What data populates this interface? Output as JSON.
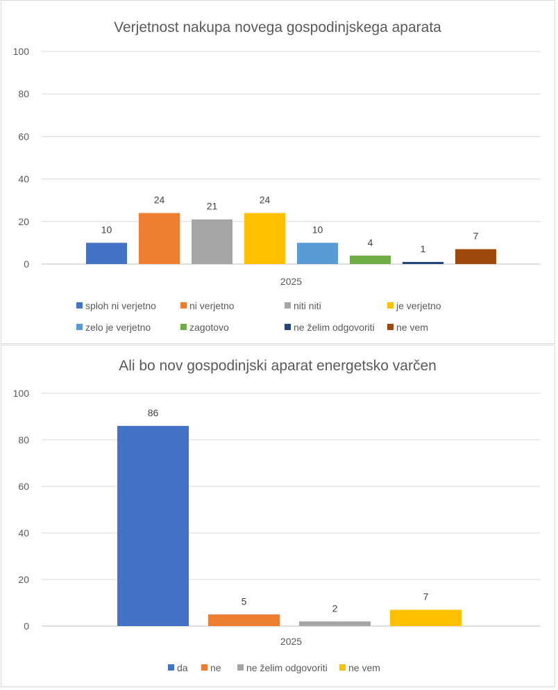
{
  "chart_data": [
    {
      "type": "bar",
      "title": "Verjetnost nakupa novega gospodinjskega aparata",
      "categories": [
        "2025"
      ],
      "ylim": [
        0,
        100
      ],
      "yticks": [
        0,
        20,
        40,
        60,
        80,
        100
      ],
      "grid": true,
      "legend_position": "bottom",
      "series": [
        {
          "name": "sploh ni verjetno",
          "values": [
            10
          ],
          "color": "#4472C4"
        },
        {
          "name": "ni verjetno",
          "values": [
            24
          ],
          "color": "#ED7D31"
        },
        {
          "name": "niti niti",
          "values": [
            21
          ],
          "color": "#A5A5A5"
        },
        {
          "name": "je verjetno",
          "values": [
            24
          ],
          "color": "#FFC000"
        },
        {
          "name": "zelo je verjetno",
          "values": [
            10
          ],
          "color": "#5B9BD5"
        },
        {
          "name": "zagotovo",
          "values": [
            4
          ],
          "color": "#70AD47"
        },
        {
          "name": "ne želim odgovoriti",
          "values": [
            1
          ],
          "color": "#264478"
        },
        {
          "name": "ne vem",
          "values": [
            7
          ],
          "color": "#9E480E"
        }
      ]
    },
    {
      "type": "bar",
      "title": "Ali bo nov gospodinjski aparat energetsko varčen",
      "categories": [
        "2025"
      ],
      "ylim": [
        0,
        100
      ],
      "yticks": [
        0,
        20,
        40,
        60,
        80,
        100
      ],
      "grid": true,
      "legend_position": "bottom",
      "series": [
        {
          "name": "da",
          "values": [
            86
          ],
          "color": "#4472C4"
        },
        {
          "name": "ne",
          "values": [
            5
          ],
          "color": "#ED7D31"
        },
        {
          "name": "ne želim odgovoriti",
          "values": [
            2
          ],
          "color": "#A5A5A5"
        },
        {
          "name": "ne vem",
          "values": [
            7
          ],
          "color": "#FFC000"
        }
      ]
    }
  ]
}
